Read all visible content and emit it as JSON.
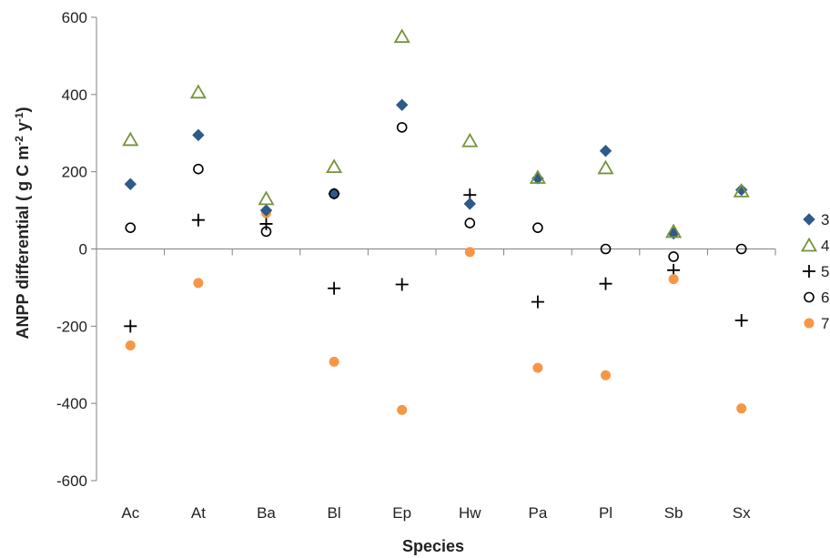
{
  "chart_data": {
    "type": "scatter",
    "title": "",
    "xlabel": "Species",
    "ylabel": "ANPP differential ( g C m",
    "ylabel_sup1": "-2",
    "ylabel_mid": " y",
    "ylabel_sup2": "-1",
    "ylabel_end": ")",
    "ylim": [
      -600,
      600
    ],
    "yticks": [
      -600,
      -400,
      -200,
      0,
      200,
      400,
      600
    ],
    "ytick_labels": [
      "-600",
      "-400",
      "-200",
      "0",
      "200",
      "400",
      "600"
    ],
    "grid": false,
    "legend_position": "right",
    "categories": [
      "Ac",
      "At",
      "Ba",
      "Bl",
      "Ep",
      "Hw",
      "Pa",
      "Pl",
      "Sb",
      "Sx"
    ],
    "series": [
      {
        "name": "3",
        "marker": "diamond",
        "color": "#2e5a8c",
        "values": [
          168,
          295,
          100,
          143,
          373,
          117,
          183,
          254,
          40,
          153
        ]
      },
      {
        "name": "4",
        "marker": "triangle",
        "color": "#76923c",
        "values": [
          283,
          406,
          130,
          213,
          550,
          280,
          185,
          210,
          45,
          150
        ]
      },
      {
        "name": "5",
        "marker": "plus",
        "color": "#000000",
        "values": [
          -200,
          75,
          65,
          -102,
          -92,
          140,
          -137,
          -90,
          -55,
          -185
        ]
      },
      {
        "name": "6",
        "marker": "circle",
        "color": "#000000",
        "values": [
          55,
          207,
          45,
          143,
          315,
          67,
          55,
          0,
          -20,
          0
        ]
      },
      {
        "name": "7",
        "marker": "dot",
        "color": "#f79646",
        "values": [
          -250,
          -88,
          93,
          -292,
          -417,
          -8,
          -308,
          -327,
          -78,
          -413
        ]
      }
    ]
  }
}
